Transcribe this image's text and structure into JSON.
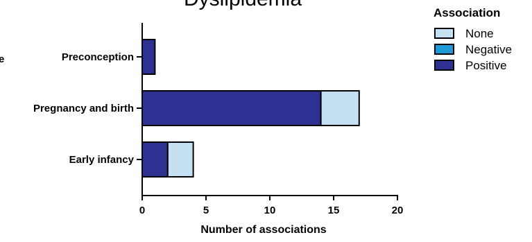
{
  "chart_data": {
    "type": "bar",
    "orientation": "horizontal",
    "stacked": true,
    "title": "Dyslipidemia",
    "xlabel": "Number of associations",
    "ylabel": "",
    "xlim": [
      0,
      20
    ],
    "xticks": [
      0,
      5,
      10,
      15,
      20
    ],
    "categories": [
      "Preconception",
      "Pregnancy and birth",
      "Early infancy"
    ],
    "series": [
      {
        "name": "Positive",
        "values": [
          1,
          14,
          2
        ],
        "color": "#2e3192"
      },
      {
        "name": "Negative",
        "values": [
          0,
          0,
          0
        ],
        "color": "#1e9ad6"
      },
      {
        "name": "None",
        "values": [
          0,
          3,
          2
        ],
        "color": "#c5dff3"
      }
    ],
    "legend": {
      "title": "Association",
      "position": "top-right",
      "order": [
        "None",
        "Negative",
        "Positive"
      ]
    },
    "grid": false,
    "cut_off_label": "e"
  }
}
